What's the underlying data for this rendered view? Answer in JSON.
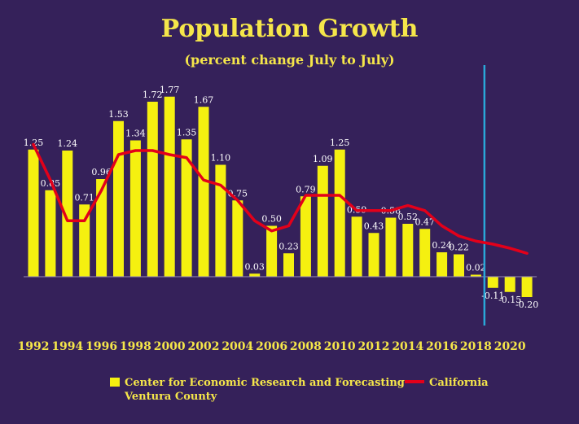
{
  "colors": {
    "background": "#35215a",
    "bar": "#f5f010",
    "line": "#e3001a",
    "divider": "#2aa7d8",
    "text": "#f5e64a",
    "data_label": "#ffffff"
  },
  "chart_data": {
    "type": "bar",
    "title": "Population Growth",
    "subtitle": "(percent change July to July)",
    "x": [
      1992,
      1993,
      1994,
      1995,
      1996,
      1997,
      1998,
      1999,
      2000,
      2001,
      2002,
      2003,
      2004,
      2005,
      2006,
      2007,
      2008,
      2009,
      2010,
      2011,
      2012,
      2013,
      2014,
      2015,
      2016,
      2017,
      2018,
      2019,
      2020,
      2021
    ],
    "x_tick_labels": [
      "1992",
      "1994",
      "1996",
      "1998",
      "2000",
      "2002",
      "2004",
      "2006",
      "2008",
      "2010",
      "2012",
      "2014",
      "2016",
      "2018",
      "2020"
    ],
    "series": [
      {
        "name": "Center for Economic Research and Forecasting",
        "name_line2": "Ventura County",
        "type": "bar",
        "values": [
          1.25,
          0.85,
          1.24,
          0.71,
          0.96,
          1.53,
          1.34,
          1.72,
          1.77,
          1.35,
          1.67,
          1.1,
          0.75,
          0.03,
          0.5,
          0.23,
          0.79,
          1.09,
          1.25,
          0.59,
          0.43,
          0.58,
          0.52,
          0.47,
          0.24,
          0.22,
          0.02,
          -0.11,
          -0.15,
          -0.2
        ],
        "labels": [
          "1.25",
          "0.85",
          "1.24",
          "0.71",
          "0.96",
          "1.53",
          "1.34",
          "1.72",
          "1.77",
          "1.35",
          "1.67",
          "1.10",
          "0.75",
          "0.03",
          "0.50",
          "0.23",
          "0.79",
          "1.09",
          "1.25",
          "0.59",
          "0.43",
          "0.58",
          "0.52",
          "0.47",
          "0.24",
          "0.22",
          "0.02",
          "-0.11",
          "-0.15",
          "-0.20"
        ]
      },
      {
        "name": "California",
        "type": "line",
        "values": [
          1.3,
          0.95,
          0.55,
          0.55,
          0.85,
          1.2,
          1.24,
          1.24,
          1.2,
          1.17,
          0.95,
          0.9,
          0.75,
          0.55,
          0.45,
          0.5,
          0.8,
          0.8,
          0.8,
          0.65,
          0.65,
          0.65,
          0.7,
          0.65,
          0.5,
          0.4,
          0.35,
          0.32,
          0.28,
          0.23
        ]
      }
    ],
    "ylim": [
      -0.35,
      1.85
    ],
    "forecast_divider_x": 2018.5,
    "grid": false,
    "legend_position": "bottom"
  }
}
